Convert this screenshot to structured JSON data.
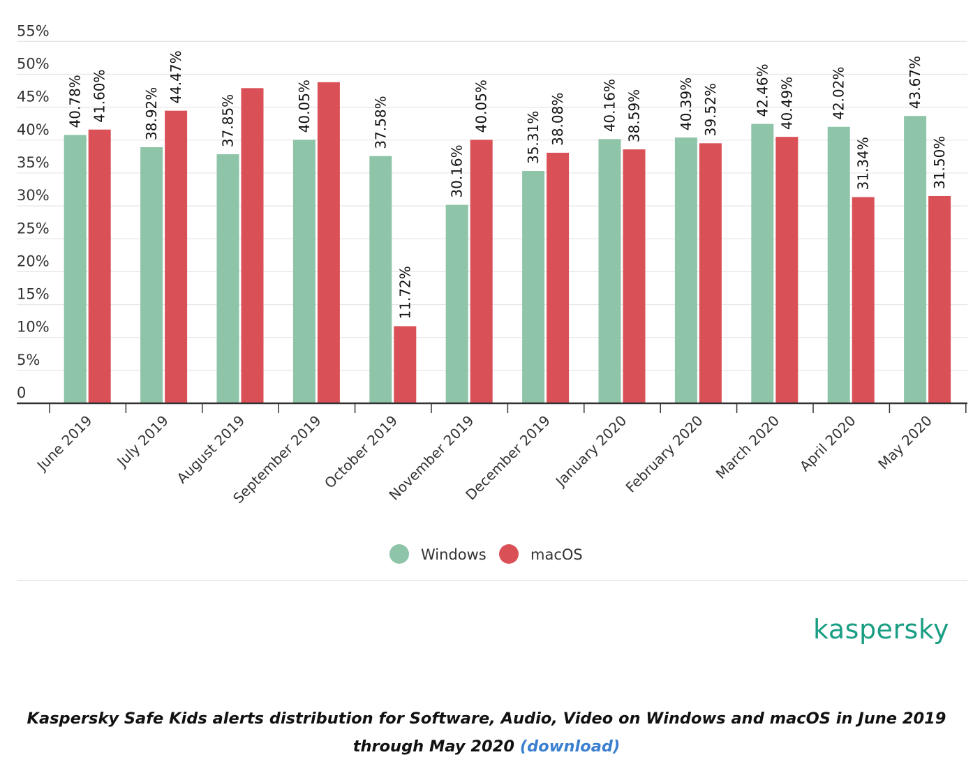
{
  "chart_data": {
    "type": "bar",
    "title": "",
    "xlabel": "",
    "ylabel": "",
    "ylim": [
      0,
      55
    ],
    "y_ticks": [
      "0",
      "5%",
      "10%",
      "15%",
      "20%",
      "25%",
      "30%",
      "35%",
      "40%",
      "45%",
      "50%",
      "55%"
    ],
    "y_tick_values": [
      0,
      5,
      10,
      15,
      20,
      25,
      30,
      35,
      40,
      45,
      50,
      55
    ],
    "categories": [
      "June 2019",
      "July 2019",
      "August 2019",
      "September 2019",
      "October 2019",
      "November 2019",
      "December 2019",
      "January 2020",
      "February 2020",
      "March 2020",
      "April 2020",
      "May 2020"
    ],
    "series": [
      {
        "name": "Windows",
        "color": "#8ec4a8",
        "values": [
          40.78,
          38.92,
          37.85,
          40.05,
          37.58,
          30.16,
          35.31,
          40.16,
          40.39,
          42.46,
          42.02,
          43.67
        ],
        "labels": [
          "40.78%",
          "38.92%",
          "37.85%",
          "40.05%",
          "37.58%",
          "30.16%",
          "35.31%",
          "40.16%",
          "40.39%",
          "42.46%",
          "42.02%",
          "43.67%"
        ]
      },
      {
        "name": "macOS",
        "color": "#d95157",
        "values": [
          41.6,
          44.47,
          47.9,
          48.8,
          11.72,
          40.05,
          38.08,
          38.59,
          39.52,
          40.49,
          31.34,
          31.5
        ],
        "labels": [
          "41.60%",
          "44.47%",
          "",
          "",
          "11.72%",
          "40.05%",
          "38.08%",
          "38.59%",
          "39.52%",
          "40.49%",
          "31.34%",
          "31.50%"
        ]
      }
    ],
    "legend": "bottom-center",
    "grid": true
  },
  "brand": {
    "logo_text": "kaspersky",
    "color": "#1a9e83"
  },
  "caption": {
    "text": "Kaspersky Safe Kids alerts distribution for Software, Audio, Video on Windows and macOS in June 2019 through May 2020",
    "link_text": "(download)"
  }
}
